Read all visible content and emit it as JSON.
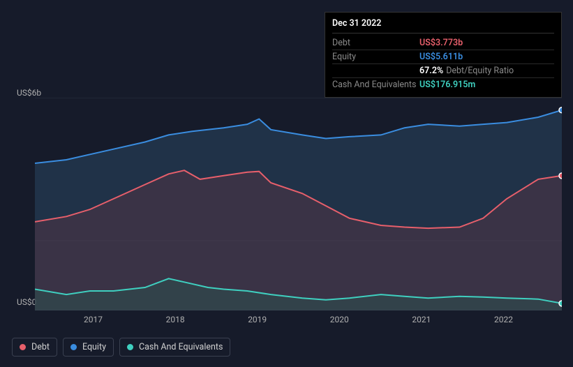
{
  "tooltip": {
    "date": "Dec 31 2022",
    "rows": [
      {
        "label": "Debt",
        "value": "US$3.773b",
        "color": "#e75f6b"
      },
      {
        "label": "Equity",
        "value": "US$5.611b",
        "color": "#3a8de0"
      },
      {
        "label": "",
        "value": "67.2%",
        "sub": "Debt/Equity Ratio",
        "color": "#ffffff"
      },
      {
        "label": "Cash And Equivalents",
        "value": "US$176.915m",
        "color": "#3fd0c0"
      }
    ]
  },
  "yaxis": {
    "top_label": "US$6b",
    "bottom_label": "US$0"
  },
  "xaxis": {
    "labels": [
      "2017",
      "2018",
      "2019",
      "2020",
      "2021",
      "2022"
    ]
  },
  "legend": [
    {
      "label": "Debt",
      "color": "#e75f6b"
    },
    {
      "label": "Equity",
      "color": "#3a8de0"
    },
    {
      "label": "Cash And Equivalents",
      "color": "#3fd0c0"
    }
  ],
  "chart": {
    "background": "#161b2a",
    "grid_color": "#2a3042",
    "type": "area",
    "xlim": [
      2016.3,
      2023.0
    ],
    "ylim": [
      0,
      6
    ],
    "series": {
      "equity": {
        "color_line": "#3a8de0",
        "color_fill": "#2a4560",
        "fill_opacity": 0.55,
        "data": [
          [
            2016.3,
            4.15
          ],
          [
            2016.7,
            4.25
          ],
          [
            2017.0,
            4.4
          ],
          [
            2017.3,
            4.55
          ],
          [
            2017.7,
            4.75
          ],
          [
            2018.0,
            4.95
          ],
          [
            2018.3,
            5.05
          ],
          [
            2018.7,
            5.15
          ],
          [
            2019.0,
            5.25
          ],
          [
            2019.15,
            5.4
          ],
          [
            2019.3,
            5.1
          ],
          [
            2019.7,
            4.95
          ],
          [
            2020.0,
            4.85
          ],
          [
            2020.3,
            4.9
          ],
          [
            2020.7,
            4.95
          ],
          [
            2021.0,
            5.15
          ],
          [
            2021.3,
            5.25
          ],
          [
            2021.7,
            5.2
          ],
          [
            2022.0,
            5.25
          ],
          [
            2022.3,
            5.3
          ],
          [
            2022.7,
            5.45
          ],
          [
            2023.0,
            5.65
          ]
        ]
      },
      "debt": {
        "color_line": "#e75f6b",
        "color_fill": "#5a3545",
        "fill_opacity": 0.45,
        "data": [
          [
            2016.3,
            2.5
          ],
          [
            2016.7,
            2.65
          ],
          [
            2017.0,
            2.85
          ],
          [
            2017.3,
            3.15
          ],
          [
            2017.7,
            3.55
          ],
          [
            2018.0,
            3.85
          ],
          [
            2018.2,
            3.95
          ],
          [
            2018.4,
            3.7
          ],
          [
            2018.7,
            3.8
          ],
          [
            2019.0,
            3.9
          ],
          [
            2019.15,
            3.92
          ],
          [
            2019.3,
            3.6
          ],
          [
            2019.7,
            3.3
          ],
          [
            2020.0,
            2.95
          ],
          [
            2020.3,
            2.6
          ],
          [
            2020.7,
            2.4
          ],
          [
            2021.0,
            2.35
          ],
          [
            2021.3,
            2.32
          ],
          [
            2021.7,
            2.35
          ],
          [
            2022.0,
            2.6
          ],
          [
            2022.3,
            3.15
          ],
          [
            2022.7,
            3.7
          ],
          [
            2023.0,
            3.8
          ]
        ]
      },
      "cash": {
        "color_line": "#3fd0c0",
        "color_fill": "#2a5550",
        "fill_opacity": 0.45,
        "data": [
          [
            2016.3,
            0.6
          ],
          [
            2016.7,
            0.45
          ],
          [
            2017.0,
            0.55
          ],
          [
            2017.3,
            0.55
          ],
          [
            2017.7,
            0.65
          ],
          [
            2018.0,
            0.9
          ],
          [
            2018.2,
            0.8
          ],
          [
            2018.5,
            0.65
          ],
          [
            2018.7,
            0.6
          ],
          [
            2019.0,
            0.55
          ],
          [
            2019.3,
            0.45
          ],
          [
            2019.7,
            0.35
          ],
          [
            2020.0,
            0.3
          ],
          [
            2020.3,
            0.35
          ],
          [
            2020.7,
            0.45
          ],
          [
            2021.0,
            0.4
          ],
          [
            2021.3,
            0.35
          ],
          [
            2021.7,
            0.4
          ],
          [
            2022.0,
            0.38
          ],
          [
            2022.3,
            0.35
          ],
          [
            2022.7,
            0.32
          ],
          [
            2023.0,
            0.2
          ]
        ]
      }
    }
  }
}
